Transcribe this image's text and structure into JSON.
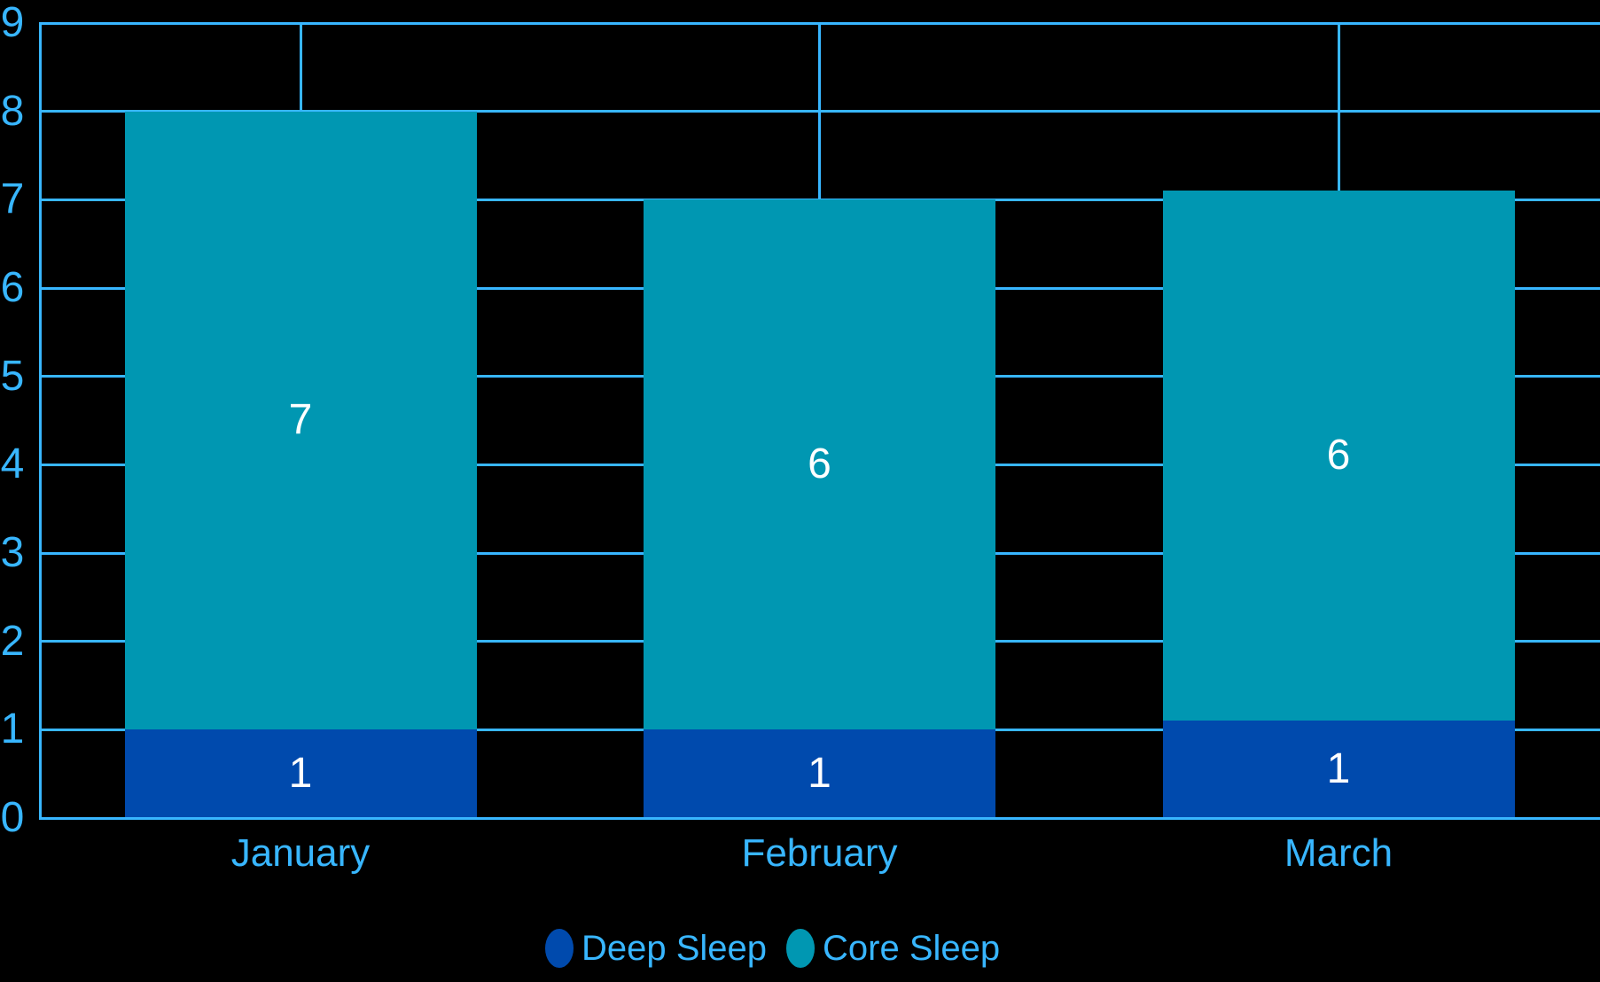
{
  "colors": {
    "background": "#000000",
    "axis": "#38B6FF",
    "grid": "#38B6FF",
    "axis_text": "#38B6FF",
    "bar_label_text": "#FFFFFF",
    "deep_sleep": "#004AAD",
    "core_sleep": "#0097B2"
  },
  "chart_data": {
    "type": "bar",
    "stacked": true,
    "title": "",
    "xlabel": "",
    "ylabel": "",
    "categories": [
      "January",
      "February",
      "March"
    ],
    "series": [
      {
        "name": "Deep Sleep",
        "color": "#004AAD",
        "values": [
          1,
          1,
          1.1
        ],
        "data_labels": [
          "1",
          "1",
          "1"
        ]
      },
      {
        "name": "Core Sleep",
        "color": "#0097B2",
        "values": [
          7,
          6,
          6
        ],
        "data_labels": [
          "7",
          "6",
          "6"
        ]
      }
    ],
    "totals": [
      8,
      7,
      7.1
    ],
    "y_axis": {
      "min": 0,
      "max": 9,
      "tick_step": 1,
      "tick_labels": [
        "0",
        "1",
        "2",
        "3",
        "4",
        "5",
        "6",
        "7",
        "8",
        "9"
      ]
    },
    "grid": {
      "horizontal": true,
      "vertical_at_category_centers": true
    },
    "legend_position": "bottom"
  }
}
